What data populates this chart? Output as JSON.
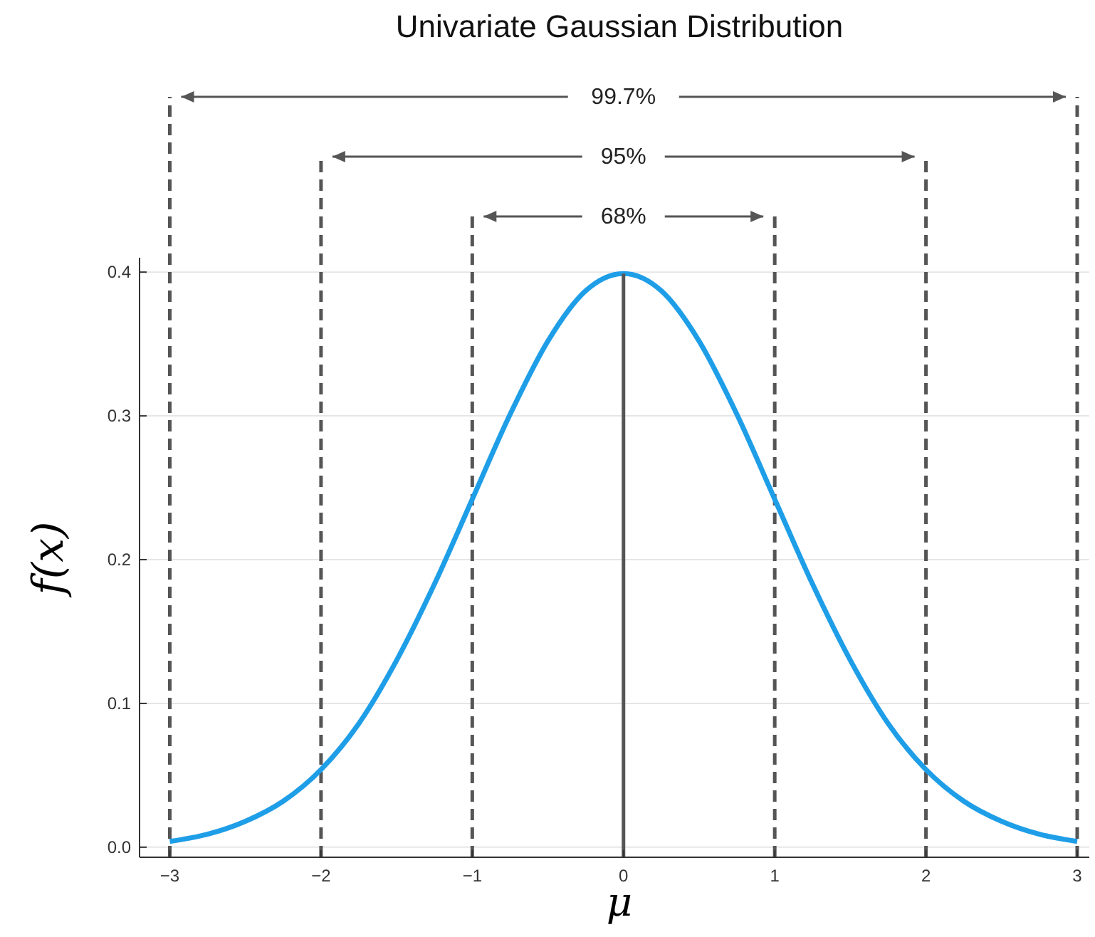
{
  "chart_data": {
    "type": "line",
    "title": "Univariate Gaussian Distribution",
    "xlabel": "μ",
    "ylabel": "f(x)",
    "xlim": [
      -3.2,
      3.08
    ],
    "ylim": [
      -0.007,
      0.41
    ],
    "xticks": [
      {
        "value": -3,
        "label": "−3"
      },
      {
        "value": -2,
        "label": "−2"
      },
      {
        "value": -1,
        "label": "−1"
      },
      0,
      1,
      2,
      3
    ],
    "yticks": [
      {
        "value": 0,
        "label": "0.0"
      },
      0.1,
      0.2,
      0.3,
      0.4
    ],
    "grid": "y",
    "series": [
      {
        "color": "#1f9ee8",
        "x": [
          -3,
          -2.75,
          -2.5,
          -2.25,
          -2,
          -1.75,
          -1.5,
          -1.25,
          -1,
          -0.75,
          -0.5,
          -0.25,
          0,
          0.25,
          0.5,
          0.75,
          1,
          1.25,
          1.5,
          1.75,
          2,
          2.25,
          2.5,
          2.75,
          3
        ],
        "values": [
          0.004,
          0.009,
          0.018,
          0.032,
          0.054,
          0.086,
          0.13,
          0.183,
          0.242,
          0.301,
          0.352,
          0.387,
          0.399,
          0.387,
          0.352,
          0.301,
          0.242,
          0.183,
          0.13,
          0.086,
          0.054,
          0.032,
          0.018,
          0.009,
          0.004
        ]
      },
      {
        "color": "#555555",
        "x": [
          0,
          0
        ],
        "values": [
          -0.007,
          0.399
        ]
      }
    ],
    "ref_lines": [
      {
        "axis": "x",
        "value": -1,
        "color": "#555555",
        "line_style": "dashed"
      },
      {
        "axis": "x",
        "value": 1,
        "color": "#555555",
        "line_style": "dashed"
      },
      {
        "axis": "x",
        "value": -2,
        "color": "#555555",
        "line_style": "dashed"
      },
      {
        "axis": "x",
        "value": 2,
        "color": "#555555",
        "line_style": "dashed"
      },
      {
        "axis": "x",
        "value": -3,
        "color": "#555555",
        "line_style": "dashed"
      },
      {
        "axis": "x",
        "value": 3,
        "color": "#555555",
        "line_style": "dashed"
      }
    ],
    "annotations": [
      "68%",
      "95%",
      "99.7%"
    ]
  }
}
